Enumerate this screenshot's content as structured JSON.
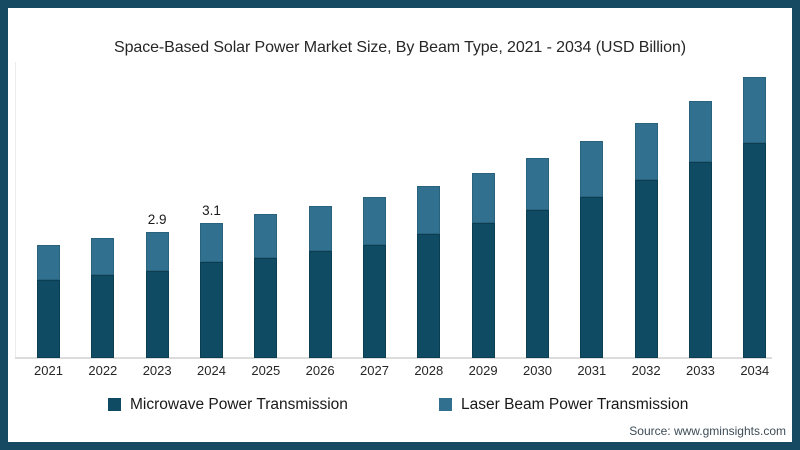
{
  "chart": {
    "title": "Space-Based Solar Power Market Size, By Beam Type, 2021 - 2034 (USD Billion)"
  },
  "chart_data": {
    "type": "bar",
    "stacked": true,
    "title": "Space-Based Solar Power Market Size, By Beam Type, 2021 - 2034 (USD Billion)",
    "categories": [
      "2021",
      "2022",
      "2023",
      "2024",
      "2025",
      "2026",
      "2027",
      "2028",
      "2029",
      "2030",
      "2031",
      "2032",
      "2033",
      "2034"
    ],
    "series": [
      {
        "name": "Microwave Power Transmission",
        "color": "#0f4c63",
        "values": [
          1.8,
          1.9,
          2.0,
          2.2,
          2.3,
          2.45,
          2.6,
          2.85,
          3.1,
          3.4,
          3.7,
          4.1,
          4.5,
          4.95
        ]
      },
      {
        "name": "Laser Beam Power Transmission",
        "color": "#31708f",
        "values": [
          0.8,
          0.85,
          0.9,
          0.9,
          1.0,
          1.05,
          1.1,
          1.1,
          1.15,
          1.2,
          1.3,
          1.3,
          1.4,
          1.5
        ]
      }
    ],
    "totals": [
      2.6,
      2.75,
      2.9,
      3.1,
      3.3,
      3.5,
      3.7,
      3.95,
      4.25,
      4.6,
      5.0,
      5.4,
      5.9,
      6.45
    ],
    "data_labels": [
      {
        "category": "2023",
        "text": "2.9"
      },
      {
        "category": "2024",
        "text": "3.1"
      }
    ],
    "xlabel": "",
    "ylabel": "",
    "grid": false,
    "legend_position": "bottom",
    "axis_color": "#dcdcdc"
  },
  "footer": {
    "source": "Source: www.gminsights.com"
  },
  "colors": {
    "frame_border": "#164a63",
    "microwave": "#0f4c63",
    "laser": "#31708f"
  }
}
